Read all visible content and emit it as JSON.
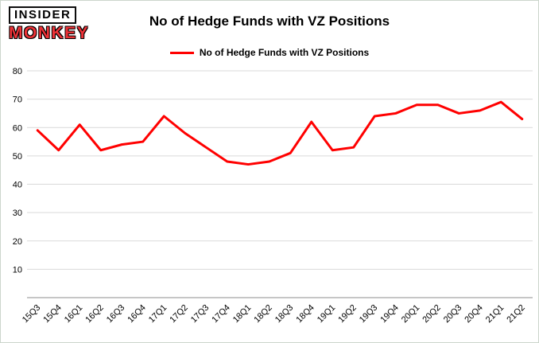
{
  "header": {
    "logo_line1": "INSIDER",
    "logo_line2": "MONKEY",
    "title": "No of Hedge Funds with VZ Positions"
  },
  "legend": {
    "label": "No of Hedge Funds with VZ Positions",
    "color": "#ff0000"
  },
  "chart_data": {
    "type": "line",
    "title": "No of Hedge Funds with VZ Positions",
    "categories": [
      "15Q3",
      "15Q4",
      "16Q1",
      "16Q2",
      "16Q3",
      "16Q4",
      "17Q1",
      "17Q2",
      "17Q3",
      "17Q4",
      "18Q1",
      "18Q2",
      "18Q3",
      "18Q4",
      "19Q1",
      "19Q2",
      "19Q3",
      "19Q4",
      "20Q1",
      "20Q2",
      "20Q3",
      "20Q4",
      "21Q1",
      "21Q2"
    ],
    "series": [
      {
        "name": "No of Hedge Funds with VZ Positions",
        "color": "#ff0000",
        "values": [
          59,
          52,
          61,
          52,
          54,
          55,
          64,
          58,
          53,
          48,
          47,
          48,
          51,
          62,
          52,
          53,
          64,
          65,
          68,
          68,
          65,
          66,
          69,
          63
        ]
      }
    ],
    "xlabel": "",
    "ylabel": "",
    "ylim": [
      0,
      80
    ],
    "yticks": [
      10,
      20,
      30,
      40,
      50,
      60,
      70,
      80
    ],
    "grid": true,
    "grid_color": "#d9d9d9",
    "axis_color": "#8c8c8c",
    "tick_label_color": "#000000",
    "legend_position": "top"
  }
}
